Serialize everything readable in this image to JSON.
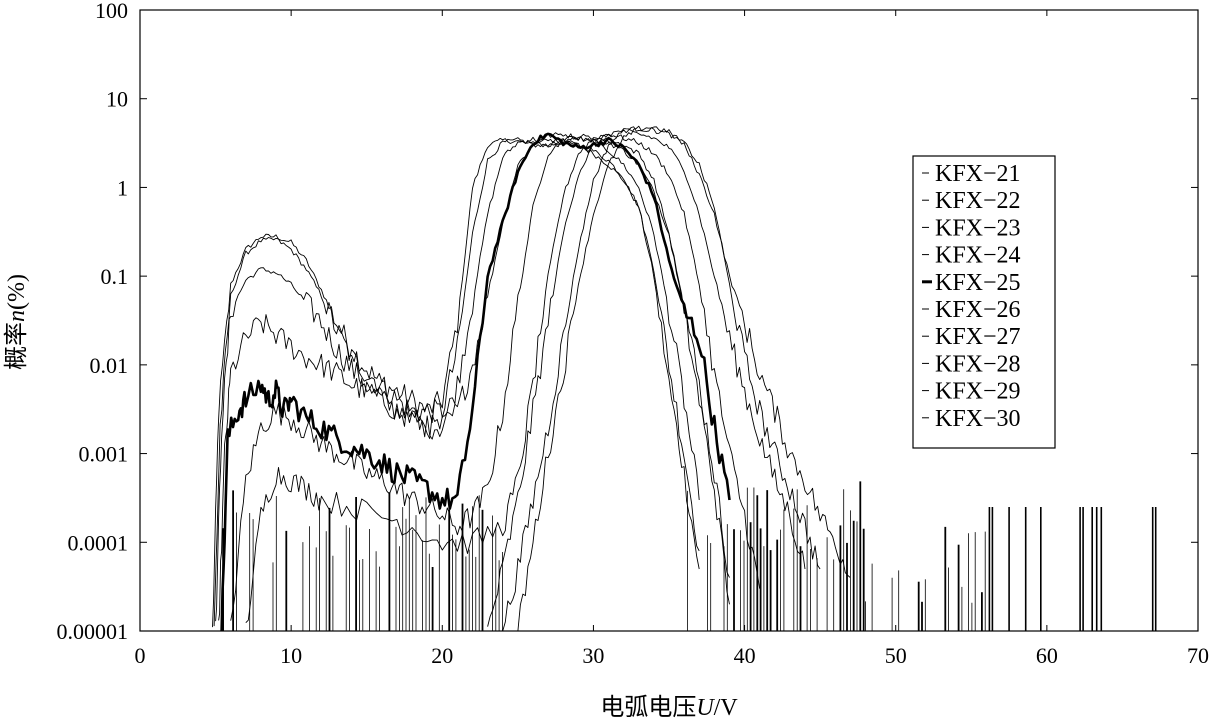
{
  "chart_data": {
    "type": "line",
    "xlabel_main": "电弧电压",
    "xlabel_var": "U",
    "xlabel_unit": "/V",
    "ylabel_main": "概率",
    "ylabel_var": "n",
    "ylabel_unit": "(%)",
    "xlim": [
      0,
      70
    ],
    "ylim": [
      1e-05,
      100
    ],
    "yscale": "log",
    "grid": false,
    "legend_position": "right",
    "x_ticks": [
      "0",
      "10",
      "20",
      "30",
      "40",
      "50",
      "60",
      "70"
    ],
    "y_ticks": [
      "100",
      "10",
      "1",
      "0.1",
      "0.01",
      "0.001",
      "0.0001",
      "0.00001"
    ],
    "series": [
      {
        "name": "KFX−21",
        "bold": false,
        "points": [
          [
            4.8,
            1e-05
          ],
          [
            5.2,
            0.003
          ],
          [
            6,
            0.08
          ],
          [
            7,
            0.2
          ],
          [
            8,
            0.28
          ],
          [
            9,
            0.28
          ],
          [
            10,
            0.24
          ],
          [
            11,
            0.15
          ],
          [
            12,
            0.07
          ],
          [
            13,
            0.03
          ],
          [
            14,
            0.015
          ],
          [
            15,
            0.009
          ],
          [
            16,
            0.006
          ],
          [
            17,
            0.005
          ],
          [
            18,
            0.004
          ],
          [
            19,
            0.003
          ],
          [
            20,
            0.004
          ],
          [
            21,
            0.03
          ],
          [
            22,
            1.0
          ],
          [
            23,
            3.0
          ],
          [
            24,
            3.4
          ],
          [
            25,
            3.3
          ],
          [
            26,
            3.0
          ],
          [
            27,
            3.0
          ],
          [
            28,
            3.2
          ],
          [
            29,
            3.0
          ],
          [
            30,
            2.4
          ],
          [
            31,
            1.8
          ],
          [
            32,
            1.2
          ],
          [
            33,
            0.6
          ],
          [
            34,
            0.1
          ],
          [
            35,
            0.006
          ],
          [
            36,
            0.0006
          ],
          [
            37,
            5e-05
          ]
        ]
      },
      {
        "name": "KFX−22",
        "bold": false,
        "points": [
          [
            4.9,
            1e-05
          ],
          [
            5.3,
            0.002
          ],
          [
            6,
            0.06
          ],
          [
            7,
            0.18
          ],
          [
            8,
            0.25
          ],
          [
            9,
            0.26
          ],
          [
            10,
            0.2
          ],
          [
            11,
            0.12
          ],
          [
            12,
            0.06
          ],
          [
            13,
            0.025
          ],
          [
            14,
            0.012
          ],
          [
            15,
            0.008
          ],
          [
            16,
            0.006
          ],
          [
            17,
            0.004
          ],
          [
            18,
            0.003
          ],
          [
            19,
            0.003
          ],
          [
            20,
            0.003
          ],
          [
            21,
            0.015
          ],
          [
            22,
            0.3
          ],
          [
            23,
            2.0
          ],
          [
            24,
            3.2
          ],
          [
            25,
            3.4
          ],
          [
            26,
            3.2
          ],
          [
            27,
            3.0
          ],
          [
            28,
            3.3
          ],
          [
            29,
            3.0
          ],
          [
            30,
            2.6
          ],
          [
            31,
            2.0
          ],
          [
            32,
            1.3
          ],
          [
            33,
            0.6
          ],
          [
            34,
            0.12
          ],
          [
            35,
            0.01
          ],
          [
            36,
            0.001
          ],
          [
            37,
            8e-05
          ]
        ]
      },
      {
        "name": "KFX−23",
        "bold": false,
        "points": [
          [
            5.0,
            1e-05
          ],
          [
            5.4,
            0.002
          ],
          [
            6,
            0.04
          ],
          [
            7,
            0.09
          ],
          [
            8,
            0.12
          ],
          [
            9,
            0.11
          ],
          [
            10,
            0.08
          ],
          [
            11,
            0.05
          ],
          [
            12,
            0.03
          ],
          [
            13,
            0.015
          ],
          [
            14,
            0.009
          ],
          [
            15,
            0.006
          ],
          [
            16,
            0.004
          ],
          [
            17,
            0.003
          ],
          [
            18,
            0.0025
          ],
          [
            19,
            0.002
          ],
          [
            20,
            0.002
          ],
          [
            21,
            0.006
          ],
          [
            22,
            0.05
          ],
          [
            23,
            0.5
          ],
          [
            24,
            2.2
          ],
          [
            25,
            3.2
          ],
          [
            26,
            3.5
          ],
          [
            27,
            3.3
          ],
          [
            28,
            3.4
          ],
          [
            29,
            3.6
          ],
          [
            30,
            3.2
          ],
          [
            31,
            2.6
          ],
          [
            32,
            1.8
          ],
          [
            33,
            1.0
          ],
          [
            34,
            0.3
          ],
          [
            35,
            0.04
          ],
          [
            36,
            0.004
          ],
          [
            37,
            0.0003
          ]
        ]
      },
      {
        "name": "KFX−24",
        "bold": false,
        "points": [
          [
            5.2,
            1e-05
          ],
          [
            5.6,
            0.001
          ],
          [
            6,
            0.008
          ],
          [
            7,
            0.02
          ],
          [
            8,
            0.03
          ],
          [
            9,
            0.022
          ],
          [
            10,
            0.016
          ],
          [
            11,
            0.012
          ],
          [
            12,
            0.01
          ],
          [
            13,
            0.008
          ],
          [
            14,
            0.006
          ],
          [
            15,
            0.005
          ],
          [
            16,
            0.004
          ],
          [
            17,
            0.003
          ],
          [
            18,
            0.0025
          ],
          [
            19,
            0.002
          ],
          [
            20,
            0.002
          ],
          [
            21,
            0.003
          ],
          [
            22,
            0.01
          ],
          [
            23,
            0.06
          ],
          [
            24,
            0.4
          ],
          [
            25,
            1.8
          ],
          [
            26,
            3.0
          ],
          [
            27,
            3.8
          ],
          [
            28,
            4.0
          ],
          [
            29,
            3.6
          ],
          [
            30,
            3.4
          ],
          [
            31,
            3.2
          ],
          [
            32,
            2.6
          ],
          [
            33,
            1.8
          ],
          [
            34,
            0.9
          ],
          [
            35,
            0.3
          ],
          [
            36,
            0.05
          ],
          [
            37,
            0.006
          ],
          [
            38,
            0.0006
          ],
          [
            39,
            4e-05
          ]
        ]
      },
      {
        "name": "KFX−25",
        "bold": true,
        "points": [
          [
            5.4,
            1e-05
          ],
          [
            5.8,
            0.0015
          ],
          [
            6.5,
            0.003
          ],
          [
            7,
            0.004
          ],
          [
            8,
            0.006
          ],
          [
            8.5,
            0.004
          ],
          [
            9,
            0.005
          ],
          [
            9.5,
            0.003
          ],
          [
            10,
            0.004
          ],
          [
            11,
            0.0025
          ],
          [
            12,
            0.002
          ],
          [
            13,
            0.0015
          ],
          [
            14,
            0.0012
          ],
          [
            15,
            0.001
          ],
          [
            16,
            0.0008
          ],
          [
            17,
            0.0006
          ],
          [
            18,
            0.0005
          ],
          [
            19,
            0.0004
          ],
          [
            20,
            0.0003
          ],
          [
            21,
            0.0003
          ],
          [
            22,
            0.003
          ],
          [
            23,
            0.1
          ],
          [
            24,
            0.4
          ],
          [
            25,
            1.5
          ],
          [
            26,
            3.2
          ],
          [
            27,
            4.0
          ],
          [
            28,
            3.2
          ],
          [
            29,
            2.8
          ],
          [
            30,
            3.0
          ],
          [
            31,
            3.4
          ],
          [
            32,
            2.8
          ],
          [
            33,
            1.8
          ],
          [
            34,
            0.8
          ],
          [
            35,
            0.15
          ],
          [
            36,
            0.04
          ],
          [
            37,
            0.02
          ],
          [
            38,
            0.002
          ],
          [
            39,
            0.0003
          ]
        ]
      },
      {
        "name": "KFX−26",
        "bold": false,
        "points": [
          [
            6.0,
            1e-05
          ],
          [
            7,
            0.0005
          ],
          [
            8,
            0.002
          ],
          [
            9,
            0.003
          ],
          [
            10,
            0.0025
          ],
          [
            11,
            0.0018
          ],
          [
            12,
            0.0013
          ],
          [
            13,
            0.001
          ],
          [
            14,
            0.0008
          ],
          [
            15,
            0.0006
          ],
          [
            16,
            0.0005
          ],
          [
            17,
            0.0004
          ],
          [
            18,
            0.0003
          ],
          [
            19,
            0.00025
          ],
          [
            20,
            0.0002
          ],
          [
            21,
            0.00015
          ],
          [
            22,
            0.0002
          ],
          [
            23,
            0.0004
          ],
          [
            24,
            0.003
          ],
          [
            25,
            0.05
          ],
          [
            26,
            0.6
          ],
          [
            27,
            2.4
          ],
          [
            28,
            3.4
          ],
          [
            29,
            3.8
          ],
          [
            30,
            3.6
          ],
          [
            31,
            3.4
          ],
          [
            32,
            3.0
          ],
          [
            33,
            2.4
          ],
          [
            34,
            1.2
          ],
          [
            35,
            0.3
          ],
          [
            36,
            0.04
          ],
          [
            37,
            0.004
          ],
          [
            38,
            0.0004
          ],
          [
            39,
            2e-05
          ]
        ]
      },
      {
        "name": "KFX−27",
        "bold": false,
        "points": [
          [
            7,
            1e-05
          ],
          [
            8,
            0.0002
          ],
          [
            9,
            0.0006
          ],
          [
            10,
            0.0005
          ],
          [
            11,
            0.0004
          ],
          [
            12,
            0.0003
          ],
          [
            14,
            0.00025
          ],
          [
            16,
            0.0002
          ],
          [
            18,
            0.00015
          ],
          [
            20,
            0.0001
          ],
          [
            22,
            0.0001
          ],
          [
            24,
            0.00015
          ],
          [
            25,
            0.0005
          ],
          [
            26,
            0.006
          ],
          [
            27,
            0.1
          ],
          [
            28,
            0.8
          ],
          [
            29,
            2.4
          ],
          [
            30,
            3.6
          ],
          [
            31,
            4.0
          ],
          [
            32,
            3.6
          ],
          [
            33,
            3.2
          ],
          [
            34,
            2.4
          ],
          [
            35,
            1.4
          ],
          [
            36,
            0.5
          ],
          [
            37,
            0.08
          ],
          [
            38,
            0.008
          ],
          [
            39,
            0.001
          ],
          [
            40,
            0.0002
          ],
          [
            41,
            3e-05
          ]
        ]
      },
      {
        "name": "KFX−28",
        "bold": false,
        "points": [
          [
            23,
            1e-05
          ],
          [
            24,
            5e-05
          ],
          [
            25,
            0.0003
          ],
          [
            26,
            0.003
          ],
          [
            27,
            0.03
          ],
          [
            28,
            0.3
          ],
          [
            29,
            1.4
          ],
          [
            30,
            3.0
          ],
          [
            31,
            4.0
          ],
          [
            32,
            4.4
          ],
          [
            33,
            4.0
          ],
          [
            34,
            3.6
          ],
          [
            35,
            2.8
          ],
          [
            36,
            1.6
          ],
          [
            37,
            0.5
          ],
          [
            38,
            0.1
          ],
          [
            39,
            0.02
          ],
          [
            40,
            0.005
          ],
          [
            41,
            0.0015
          ],
          [
            42,
            0.0005
          ],
          [
            43,
            0.0002
          ],
          [
            44,
            5e-05
          ]
        ]
      },
      {
        "name": "KFX−29",
        "bold": false,
        "points": [
          [
            24,
            1e-05
          ],
          [
            25,
            5e-05
          ],
          [
            26,
            0.0003
          ],
          [
            27,
            0.002
          ],
          [
            28,
            0.02
          ],
          [
            29,
            0.2
          ],
          [
            30,
            1.2
          ],
          [
            31,
            3.0
          ],
          [
            32,
            4.4
          ],
          [
            33,
            4.6
          ],
          [
            34,
            4.4
          ],
          [
            35,
            4.0
          ],
          [
            36,
            3.2
          ],
          [
            37,
            1.8
          ],
          [
            38,
            0.6
          ],
          [
            39,
            0.08
          ],
          [
            40,
            0.012
          ],
          [
            41,
            0.003
          ],
          [
            42,
            0.001
          ],
          [
            43,
            0.0004
          ],
          [
            44,
            0.00015
          ],
          [
            45,
            5e-05
          ]
        ]
      },
      {
        "name": "KFX−30",
        "bold": false,
        "points": [
          [
            25,
            1e-05
          ],
          [
            26,
            0.0001
          ],
          [
            27,
            0.001
          ],
          [
            28,
            0.008
          ],
          [
            29,
            0.08
          ],
          [
            30,
            0.5
          ],
          [
            31,
            1.8
          ],
          [
            32,
            3.6
          ],
          [
            33,
            4.6
          ],
          [
            34,
            4.8
          ],
          [
            35,
            4.2
          ],
          [
            36,
            3.0
          ],
          [
            37,
            1.4
          ],
          [
            38,
            0.5
          ],
          [
            39,
            0.1
          ],
          [
            40,
            0.03
          ],
          [
            41,
            0.008
          ],
          [
            42,
            0.003
          ],
          [
            43,
            0.001
          ],
          [
            44,
            0.0005
          ],
          [
            45,
            0.0002
          ],
          [
            46,
            0.0001
          ],
          [
            47,
            4e-05
          ]
        ]
      }
    ]
  }
}
